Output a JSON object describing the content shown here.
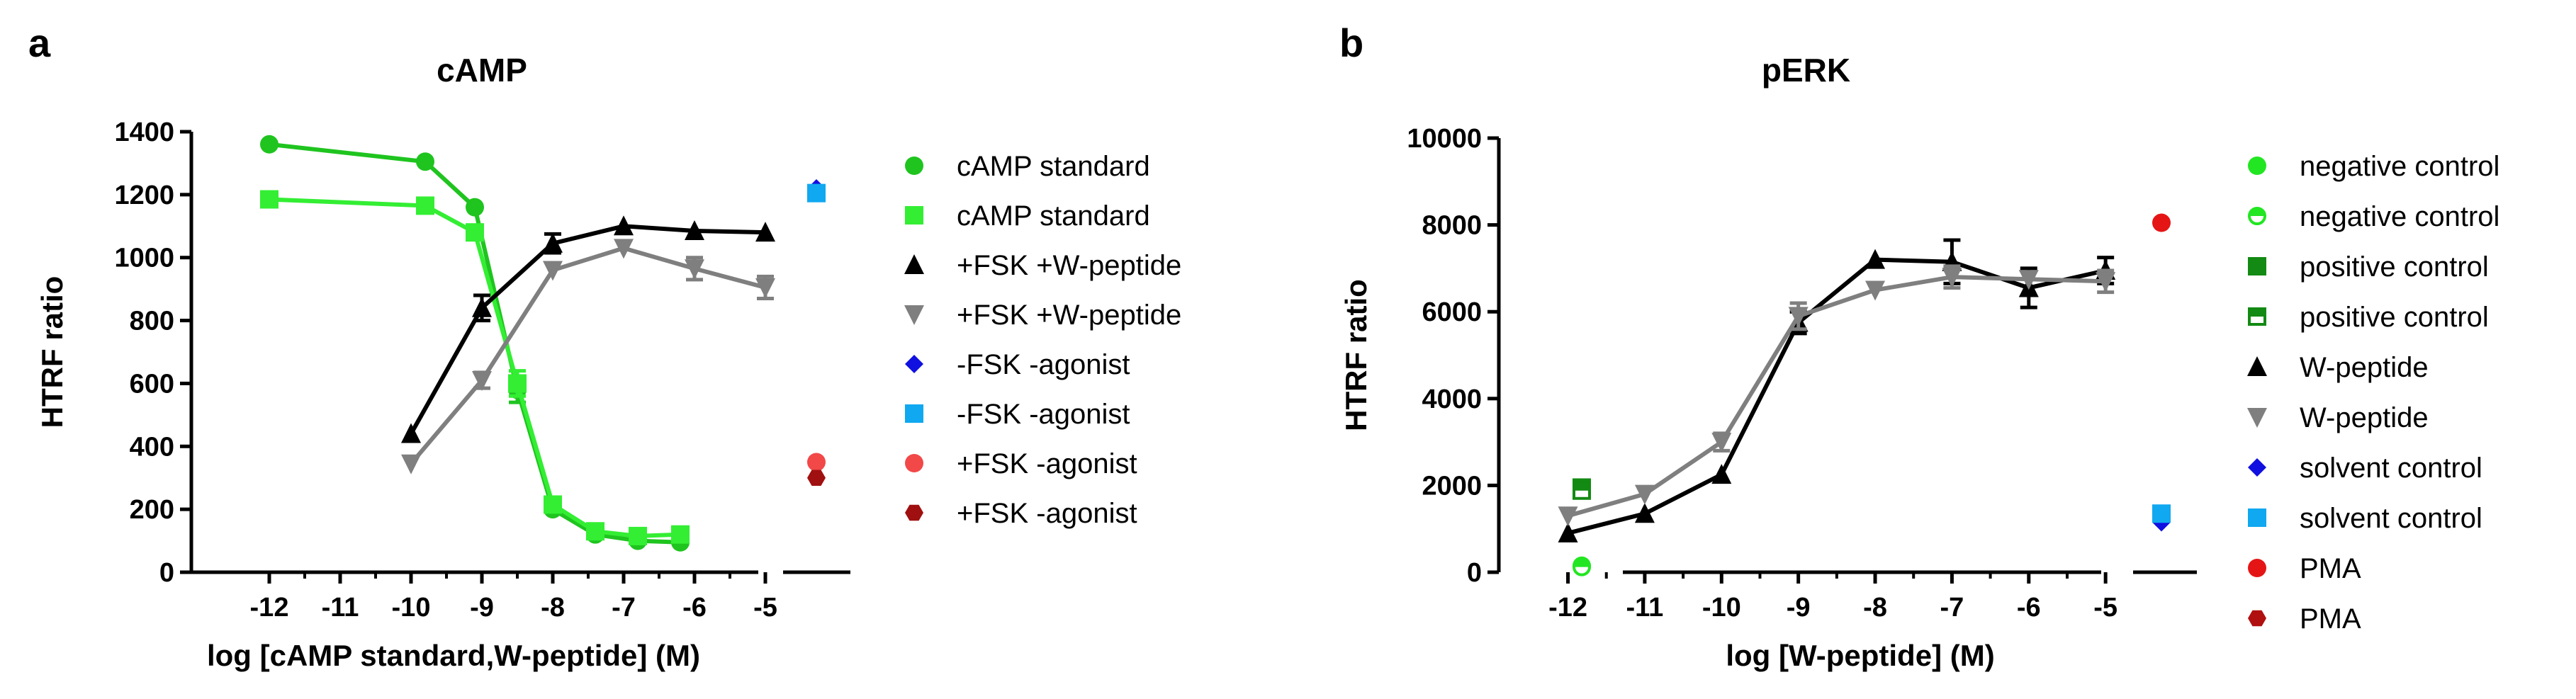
{
  "colors": {
    "axis": "#000000",
    "green_dark": "#1fc41f",
    "green_light": "#33ee33",
    "black": "#000000",
    "gray": "#7f7f7f",
    "blue": "#1010e0",
    "lightblue": "#10a8f0",
    "red_light": "#f24848",
    "red_dark": "#a01010",
    "neg_green": "#22e622",
    "pos_green": "#138a13",
    "pma_red": "#e51515",
    "pma_dark": "#b01010"
  },
  "chart_data": [
    {
      "panel": "a",
      "type": "line",
      "title": "cAMP",
      "xlabel": "log [cAMP standard,W-peptide] (M)",
      "ylabel": "HTRF ratio",
      "xlim": [
        -13.1,
        -4.9
      ],
      "ylim": [
        0,
        1400
      ],
      "xticks": [
        -12,
        -11,
        -10,
        -9,
        -8,
        -7,
        -6,
        -5
      ],
      "xtick_labels": [
        "-12",
        "-11",
        "-10",
        "-9",
        "-8",
        "-7",
        "-6",
        "-5"
      ],
      "yticks": [
        0,
        200,
        400,
        600,
        800,
        1000,
        1200,
        1400
      ],
      "ytick_labels": [
        "0",
        "200",
        "400",
        "600",
        "800",
        "1000",
        "1200",
        "1400"
      ],
      "side_panel": true,
      "legend_position": "right",
      "series": [
        {
          "name": "cAMP standard",
          "marker": "circle",
          "color": "green_dark",
          "line": true,
          "x": [
            -12,
            -9.8,
            -9.1,
            -8.5,
            -8,
            -7.4,
            -6.8,
            -6.2
          ],
          "y": [
            1360,
            1305,
            1160,
            580,
            200,
            120,
            100,
            95
          ],
          "err": [
            0,
            0,
            0,
            40,
            0,
            0,
            0,
            0
          ]
        },
        {
          "name": "cAMP standard",
          "marker": "square",
          "color": "green_light",
          "line": true,
          "x": [
            -12,
            -9.8,
            -9.1,
            -8.5,
            -8,
            -7.4,
            -6.8,
            -6.2
          ],
          "y": [
            1185,
            1165,
            1080,
            600,
            215,
            130,
            115,
            120
          ],
          "err": [
            0,
            0,
            0,
            40,
            0,
            0,
            0,
            0
          ]
        },
        {
          "name": "+FSK +W-peptide",
          "marker": "triangle-up",
          "color": "black",
          "line": true,
          "x": [
            -10,
            -9,
            -8,
            -7,
            -6,
            -5
          ],
          "y": [
            440,
            840,
            1045,
            1100,
            1085,
            1080
          ],
          "err": [
            0,
            40,
            30,
            0,
            0,
            0
          ]
        },
        {
          "name": "+FSK +W-peptide",
          "marker": "triangle-down",
          "color": "gray",
          "line": true,
          "x": [
            -10,
            -9,
            -8,
            -7,
            -6,
            -5
          ],
          "y": [
            345,
            610,
            960,
            1030,
            965,
            905
          ],
          "err": [
            0,
            25,
            0,
            0,
            35,
            35
          ]
        },
        {
          "name": "-FSK -agonist",
          "marker": "diamond",
          "color": "blue",
          "line": false,
          "side": true,
          "y": [
            1220
          ]
        },
        {
          "name": "-FSK -agonist",
          "marker": "square",
          "color": "lightblue",
          "line": false,
          "side": true,
          "y": [
            1205
          ]
        },
        {
          "name": "+FSK -agonist",
          "marker": "circle",
          "color": "red_light",
          "line": false,
          "side": true,
          "y": [
            350
          ]
        },
        {
          "name": "+FSK -agonist",
          "marker": "hexagon",
          "color": "red_dark",
          "line": false,
          "side": true,
          "y": [
            300
          ]
        }
      ]
    },
    {
      "panel": "b",
      "type": "line",
      "title": "pERK",
      "xlabel": "log [W-peptide] (M)",
      "ylabel": "HTRF ratio",
      "xlim": [
        -12.9,
        -4.9
      ],
      "ylim": [
        0,
        10000
      ],
      "xticks": [
        -12,
        -11,
        -10,
        -9,
        -8,
        -7,
        -6,
        -5
      ],
      "xtick_labels": [
        "-12",
        "-11",
        "-10",
        "-9",
        "-8",
        "-7",
        "-6",
        "-5"
      ],
      "yticks": [
        0,
        2000,
        4000,
        6000,
        8000,
        10000
      ],
      "ytick_labels": [
        "0",
        "2000",
        "4000",
        "6000",
        "8000",
        "10000"
      ],
      "side_panel": true,
      "left_points": true,
      "legend_position": "right",
      "series": [
        {
          "name": "negative control",
          "marker": "circle",
          "color": "neg_green",
          "line": false,
          "left": true,
          "y": [
            150
          ]
        },
        {
          "name": "negative control",
          "marker": "circle-half",
          "color": "neg_green",
          "line": false,
          "left": true,
          "y": [
            120
          ]
        },
        {
          "name": "positive control",
          "marker": "square",
          "color": "pos_green",
          "line": false,
          "left": true,
          "y": [
            1950
          ]
        },
        {
          "name": "positive control",
          "marker": "square-half",
          "color": "pos_green",
          "line": false,
          "left": true,
          "y": [
            1880
          ]
        },
        {
          "name": "W-peptide",
          "marker": "triangle-up",
          "color": "black",
          "line": true,
          "x": [
            -12,
            -11,
            -10,
            -9,
            -8,
            -7,
            -6,
            -5
          ],
          "y": [
            900,
            1350,
            2250,
            5750,
            7200,
            7150,
            6550,
            6950
          ],
          "err": [
            0,
            0,
            0,
            250,
            0,
            500,
            450,
            300
          ]
        },
        {
          "name": "W-peptide",
          "marker": "triangle-down",
          "color": "gray",
          "line": true,
          "x": [
            -12,
            -11,
            -10,
            -9,
            -8,
            -7,
            -6,
            -5
          ],
          "y": [
            1300,
            1800,
            3000,
            5900,
            6500,
            6800,
            6750,
            6700
          ],
          "err": [
            0,
            0,
            200,
            300,
            0,
            250,
            0,
            250
          ]
        },
        {
          "name": "solvent control",
          "marker": "diamond",
          "color": "blue",
          "line": false,
          "side": true,
          "y": [
            1150
          ]
        },
        {
          "name": "solvent control",
          "marker": "square",
          "color": "lightblue",
          "line": false,
          "side": true,
          "y": [
            1350
          ]
        },
        {
          "name": "PMA",
          "marker": "circle",
          "color": "pma_red",
          "line": false,
          "side": true,
          "y": [
            8050
          ]
        },
        {
          "name": "PMA",
          "marker": "hexagon",
          "color": "pma_dark",
          "line": false,
          "side": true,
          "y": [
            8050
          ],
          "hidden": true
        }
      ]
    }
  ]
}
